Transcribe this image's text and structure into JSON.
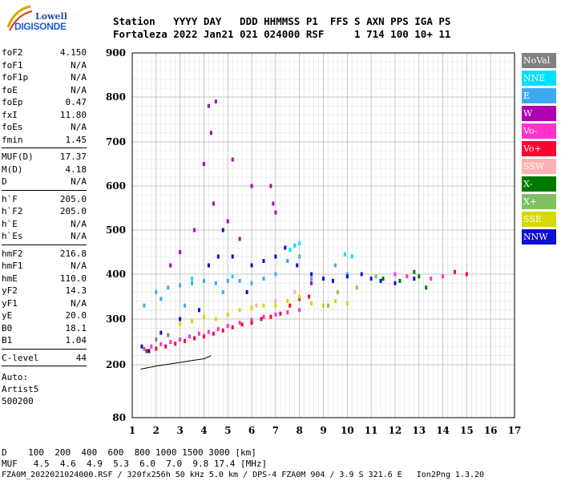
{
  "logo": {
    "line1": "Lowell",
    "line2": "DIGISONDE"
  },
  "header": {
    "line1": "Station   YYYY DAY   DDD HHMMSS P1  FFS S AXN PPS IGA PS",
    "line2": "Fortaleza 2022 Jan21 021 024000 RSF     1 714 100 10+ 11"
  },
  "params_groups": [
    [
      {
        "name": "foF2",
        "value": "4.150"
      },
      {
        "name": "foF1",
        "value": "N/A"
      },
      {
        "name": "foF1p",
        "value": "N/A"
      },
      {
        "name": "foE",
        "value": "N/A"
      },
      {
        "name": "foEp",
        "value": "0.47"
      },
      {
        "name": "fxI",
        "value": "11.80"
      },
      {
        "name": "foEs",
        "value": "N/A"
      },
      {
        "name": "fmin",
        "value": "1.45"
      }
    ],
    [
      {
        "name": "MUF(D)",
        "value": "17.37"
      },
      {
        "name": "M(D)",
        "value": "4.18"
      },
      {
        "name": "D",
        "value": "N/A"
      }
    ],
    [
      {
        "name": "h`F",
        "value": "205.0"
      },
      {
        "name": "h`F2",
        "value": "205.0"
      },
      {
        "name": "h`E",
        "value": "N/A"
      },
      {
        "name": "h`Es",
        "value": "N/A"
      }
    ],
    [
      {
        "name": "hmF2",
        "value": "216.8"
      },
      {
        "name": "hmF1",
        "value": "N/A"
      },
      {
        "name": "hmE",
        "value": "110.0"
      },
      {
        "name": "yF2",
        "value": "14.3"
      },
      {
        "name": "yF1",
        "value": "N/A"
      },
      {
        "name": "yE",
        "value": "20.0"
      },
      {
        "name": "B0",
        "value": "18.1"
      },
      {
        "name": "B1",
        "value": "1.04"
      }
    ],
    [
      {
        "name": "C-level",
        "value": "44"
      }
    ]
  ],
  "auto": [
    "Auto:",
    "Artist5",
    "500200"
  ],
  "legend": [
    {
      "label": "NoVal",
      "color": "#808080"
    },
    {
      "label": "NNE",
      "color": "#00e0ff"
    },
    {
      "label": "E",
      "color": "#3fa9f5"
    },
    {
      "label": "W",
      "color": "#b000b0"
    },
    {
      "label": "Vo-",
      "color": "#ff33cc"
    },
    {
      "label": "Vo+",
      "color": "#ff0033"
    },
    {
      "label": "SSW",
      "color": "#ffb0b0"
    },
    {
      "label": "X-",
      "color": "#007a00"
    },
    {
      "label": "X+",
      "color": "#80c060"
    },
    {
      "label": "SSE",
      "color": "#d8d800"
    },
    {
      "label": "NNW",
      "color": "#1010d0"
    }
  ],
  "footer": {
    "d_line": "D    100  200  400  600  800 1000 1500 3000 [km]",
    "muf_line": "MUF   4.5  4.6  4.9  5.3  6.0  7.0  9.8 17.4 [MHz]",
    "file_line": "FZA0M_2022021024000.RSF / 320fx256h 50 kHz 5.0 km / DPS-4 FZA0M 904 / 3.9 S 321.6 E   Ion2Png 1.3.20"
  },
  "chart_data": {
    "type": "scatter",
    "x_ticks": [
      1,
      2,
      3,
      4,
      5,
      6,
      7,
      8,
      9,
      10,
      11,
      12,
      13,
      14,
      15,
      16,
      17
    ],
    "y_ticks": [
      80,
      200,
      300,
      400,
      500,
      600,
      700,
      800,
      900
    ],
    "xlim": [
      1,
      17
    ],
    "ylim": [
      80,
      900
    ],
    "grid": true,
    "series": [
      {
        "name": "E",
        "color": "#3fa9f5",
        "points": [
          [
            2.0,
            360
          ],
          [
            2.5,
            370
          ],
          [
            3.0,
            375
          ],
          [
            3.5,
            380
          ],
          [
            4.0,
            385
          ],
          [
            4.5,
            380
          ],
          [
            5.0,
            385
          ],
          [
            5.5,
            385
          ],
          [
            6.0,
            380
          ],
          [
            6.5,
            390
          ],
          [
            7.0,
            400
          ],
          [
            7.5,
            430
          ],
          [
            8.0,
            440
          ],
          [
            8.5,
            390
          ],
          [
            9.5,
            420
          ],
          [
            10.0,
            400
          ],
          [
            1.5,
            330
          ],
          [
            2.2,
            345
          ],
          [
            3.2,
            330
          ],
          [
            4.8,
            360
          ]
        ]
      },
      {
        "name": "NNE",
        "color": "#00e0ff",
        "points": [
          [
            7.6,
            455
          ],
          [
            7.8,
            465
          ],
          [
            8.0,
            470
          ],
          [
            9.9,
            445
          ],
          [
            10.2,
            440
          ],
          [
            3.5,
            390
          ],
          [
            5.2,
            395
          ]
        ]
      },
      {
        "name": "W",
        "color": "#b000b0",
        "points": [
          [
            4.2,
            780
          ],
          [
            4.5,
            790
          ],
          [
            4.3,
            720
          ],
          [
            4.0,
            650
          ],
          [
            5.2,
            660
          ],
          [
            6.8,
            600
          ],
          [
            6.9,
            560
          ],
          [
            7.0,
            540
          ],
          [
            3.6,
            500
          ],
          [
            4.4,
            560
          ],
          [
            5.0,
            520
          ],
          [
            5.5,
            480
          ],
          [
            6.0,
            600
          ],
          [
            3.0,
            450
          ],
          [
            2.6,
            420
          ],
          [
            8.5,
            380
          ]
        ]
      },
      {
        "name": "Vo-",
        "color": "#ff33cc",
        "points": [
          [
            1.8,
            240
          ],
          [
            2.2,
            245
          ],
          [
            2.6,
            250
          ],
          [
            3.0,
            255
          ],
          [
            3.4,
            262
          ],
          [
            3.8,
            268
          ],
          [
            4.2,
            272
          ],
          [
            4.6,
            278
          ],
          [
            5.0,
            285
          ],
          [
            5.5,
            292
          ],
          [
            6.0,
            298
          ],
          [
            6.5,
            305
          ],
          [
            7.0,
            310
          ],
          [
            7.5,
            315
          ],
          [
            8.0,
            320
          ],
          [
            12.0,
            400
          ],
          [
            12.5,
            395
          ],
          [
            13.5,
            390
          ],
          [
            14.0,
            395
          ]
        ]
      },
      {
        "name": "Vo+",
        "color": "#ff0033",
        "points": [
          [
            1.6,
            230
          ],
          [
            2.0,
            235
          ],
          [
            2.4,
            240
          ],
          [
            2.8,
            246
          ],
          [
            3.2,
            252
          ],
          [
            3.6,
            258
          ],
          [
            4.0,
            262
          ],
          [
            4.4,
            268
          ],
          [
            4.8,
            275
          ],
          [
            5.2,
            282
          ],
          [
            5.6,
            288
          ],
          [
            6.0,
            292
          ],
          [
            6.4,
            300
          ],
          [
            6.8,
            305
          ],
          [
            7.2,
            312
          ],
          [
            7.6,
            330
          ],
          [
            8.0,
            345
          ],
          [
            8.4,
            350
          ],
          [
            14.5,
            405
          ],
          [
            15.0,
            400
          ]
        ]
      },
      {
        "name": "X-",
        "color": "#007a00",
        "points": [
          [
            11.5,
            390
          ],
          [
            12.2,
            385
          ],
          [
            13.0,
            395
          ],
          [
            13.3,
            370
          ],
          [
            12.8,
            405
          ]
        ]
      },
      {
        "name": "X+",
        "color": "#80c060",
        "points": [
          [
            9.2,
            330
          ],
          [
            9.6,
            360
          ],
          [
            10.4,
            370
          ],
          [
            11.2,
            395
          ]
        ]
      },
      {
        "name": "SSE",
        "color": "#d8d800",
        "points": [
          [
            3.0,
            290
          ],
          [
            3.5,
            295
          ],
          [
            4.0,
            305
          ],
          [
            4.5,
            300
          ],
          [
            5.0,
            310
          ],
          [
            5.5,
            320
          ],
          [
            6.0,
            325
          ],
          [
            6.5,
            330
          ],
          [
            7.0,
            330
          ],
          [
            7.5,
            340
          ],
          [
            8.0,
            350
          ],
          [
            8.5,
            335
          ],
          [
            9.0,
            330
          ],
          [
            9.5,
            340
          ],
          [
            10.0,
            335
          ]
        ]
      },
      {
        "name": "NNW",
        "color": "#1010d0",
        "points": [
          [
            1.4,
            240
          ],
          [
            1.7,
            230
          ],
          [
            2.2,
            270
          ],
          [
            3.0,
            300
          ],
          [
            3.8,
            320
          ],
          [
            4.2,
            420
          ],
          [
            4.6,
            440
          ],
          [
            4.8,
            500
          ],
          [
            5.2,
            440
          ],
          [
            5.8,
            360
          ],
          [
            6.0,
            420
          ],
          [
            6.5,
            430
          ],
          [
            7.0,
            440
          ],
          [
            7.4,
            460
          ],
          [
            7.9,
            420
          ],
          [
            8.5,
            400
          ],
          [
            9.0,
            390
          ],
          [
            9.4,
            385
          ],
          [
            10.0,
            395
          ],
          [
            10.6,
            400
          ],
          [
            11.0,
            390
          ],
          [
            11.4,
            385
          ],
          [
            12.0,
            380
          ],
          [
            12.8,
            390
          ]
        ]
      },
      {
        "name": "SSW",
        "color": "#ffb0b0",
        "points": [
          [
            6.2,
            330
          ],
          [
            7.0,
            340
          ],
          [
            7.8,
            360
          ]
        ]
      },
      {
        "name": "NoVal",
        "color": "#808080",
        "points": [
          [
            1.5,
            235
          ],
          [
            2.0,
            255
          ],
          [
            2.5,
            265
          ]
        ]
      }
    ],
    "trace_curve": [
      [
        1.35,
        190
      ],
      [
        2.0,
        197
      ],
      [
        3.0,
        205
      ],
      [
        3.6,
        210
      ],
      [
        4.0,
        213
      ],
      [
        4.3,
        220
      ]
    ]
  }
}
